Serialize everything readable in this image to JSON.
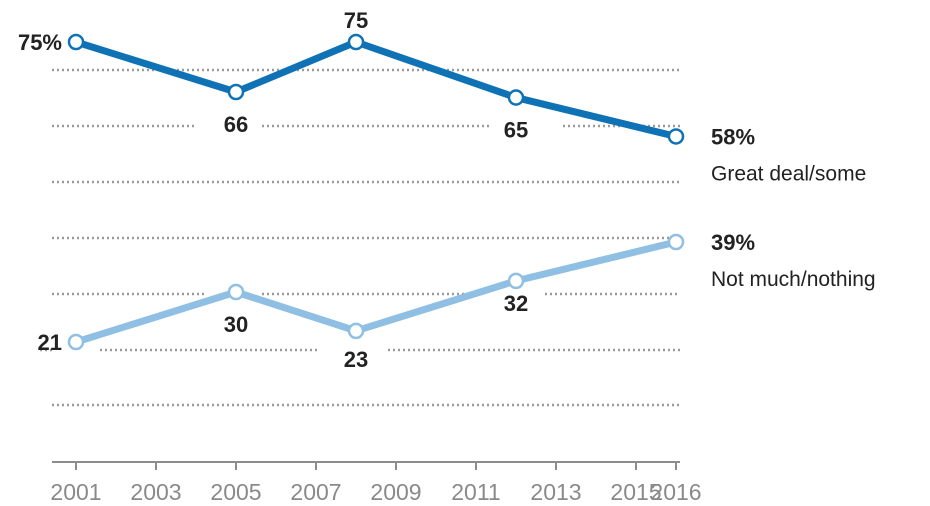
{
  "chart_data": {
    "type": "line",
    "x": [
      2001,
      2005,
      2008,
      2012,
      2016
    ],
    "xticks": [
      "2001",
      "2003",
      "2005",
      "2007",
      "2009",
      "2011",
      "2013",
      "2015",
      "2016"
    ],
    "ylim": [
      0,
      80
    ],
    "grid": true,
    "series": [
      {
        "name": "Great deal/some",
        "color": "#0e72b5",
        "values": [
          75,
          66,
          75,
          65,
          58
        ],
        "labels": [
          "75%",
          "66",
          "75",
          "65",
          "58%"
        ]
      },
      {
        "name": "Not much/nothing",
        "color": "#8fbfe3",
        "values": [
          21,
          30,
          23,
          32,
          39
        ],
        "labels": [
          "21",
          "30",
          "23",
          "32",
          "39%"
        ]
      }
    ]
  }
}
